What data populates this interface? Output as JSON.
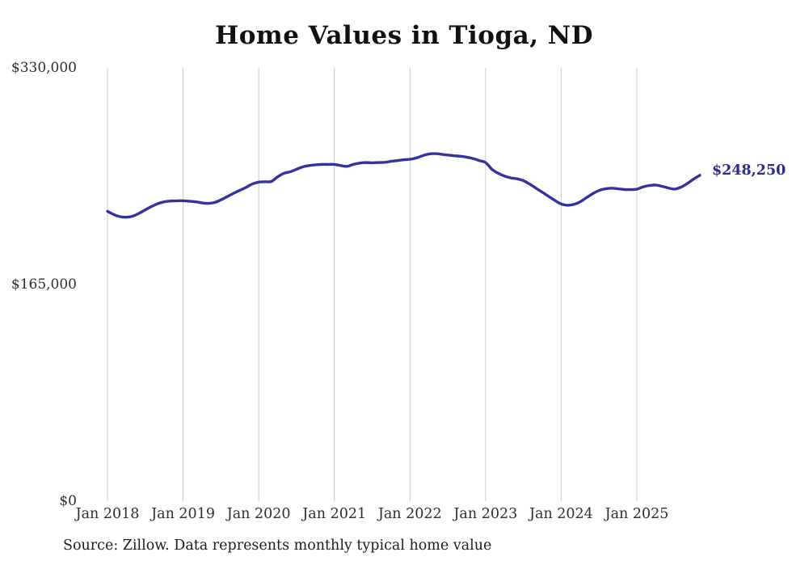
{
  "colors": {
    "background": "#ffffff",
    "line": "#3532a0",
    "end_label": "#2c2a8e",
    "grid": "#cccccc",
    "title": "#111111",
    "axis_text": "#2e2e2e",
    "source_text": "#1c1c1c"
  },
  "chart_data": {
    "type": "line",
    "title": "Home Values in Tioga, ND",
    "xlabel": "",
    "ylabel": "",
    "ylim": [
      0,
      330000
    ],
    "grid": "vertical-only",
    "legend": "none",
    "x_tick_labels": [
      "Jan 2018",
      "Jan 2019",
      "Jan 2020",
      "Jan 2021",
      "Jan 2022",
      "Jan 2023",
      "Jan 2024",
      "Jan 2025"
    ],
    "y_ticks": [
      {
        "label": "$0",
        "value": 0
      },
      {
        "label": "$165,000",
        "value": 165000
      },
      {
        "label": "$330,000",
        "value": 330000
      }
    ],
    "end_label": "$248,250",
    "end_value": 248250,
    "source": "Source: Zillow. Data represents monthly typical home value",
    "series": [
      {
        "name": "Monthly typical home value",
        "unit": "USD",
        "x_start": "2018-01",
        "frequency": "monthly",
        "values": [
          220800,
          218300,
          216700,
          216300,
          217100,
          219200,
          221900,
          224500,
          226600,
          228000,
          228600,
          228800,
          228800,
          228500,
          228000,
          227200,
          226800,
          227500,
          229500,
          232000,
          234500,
          236800,
          239000,
          241600,
          243000,
          243300,
          243500,
          247000,
          249700,
          250900,
          252800,
          254600,
          255600,
          256200,
          256500,
          256500,
          256500,
          255600,
          255000,
          256500,
          257500,
          257900,
          257700,
          257900,
          258100,
          258800,
          259400,
          260000,
          260400,
          261400,
          263100,
          264400,
          264700,
          264200,
          263600,
          263100,
          262700,
          262000,
          261000,
          259400,
          257900,
          252800,
          249700,
          247600,
          246200,
          245500,
          244100,
          241500,
          238400,
          235300,
          232200,
          229100,
          226400,
          225400,
          226000,
          228000,
          231100,
          234200,
          236600,
          237900,
          238400,
          237900,
          237400,
          237300,
          237600,
          239400,
          240400,
          240800,
          239800,
          238500,
          237700,
          239100,
          241900,
          245300,
          248250
        ]
      }
    ]
  }
}
